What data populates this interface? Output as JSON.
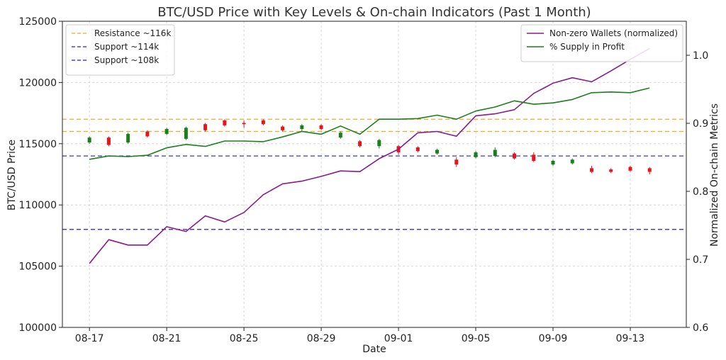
{
  "chart_data": {
    "type": "line",
    "title": "BTC/USD Price with Key Levels & On-chain Indicators (Past 1 Month)",
    "xlabel": "Date",
    "ylabel": "BTC/USD Price",
    "y2label": "Normalized On-chain Metrics",
    "x_ticks": [
      "08-17",
      "08-21",
      "08-25",
      "08-29",
      "09-01",
      "09-05",
      "09-09",
      "09-13"
    ],
    "x_tick_days": [
      0,
      4,
      8,
      12,
      16,
      20,
      24,
      28
    ],
    "xlim": [
      -1.4,
      30.9
    ],
    "ylim": [
      100000,
      125000
    ],
    "y_ticks": [
      100000,
      105000,
      110000,
      115000,
      120000,
      125000
    ],
    "y2lim": [
      0.6,
      1.05
    ],
    "y2_ticks": [
      0.6,
      0.7,
      0.8,
      0.9,
      1.0
    ],
    "y2_tick_labels": [
      "0.6",
      "0.7",
      "0.8",
      "0.9",
      "1.0"
    ],
    "grid": true,
    "horizontal_levels": [
      {
        "name": "Resistance ~116k",
        "value": 116000,
        "color": "#f5a623",
        "style": "dashed",
        "legend": true
      },
      {
        "name": "",
        "value": 117000,
        "color": "#f5a623",
        "style": "dashed",
        "legend": false
      },
      {
        "name": "Support ~114k",
        "value": 114000,
        "color": "#1f1fd6",
        "style": "dashed",
        "legend": true
      },
      {
        "name": "Support ~108k",
        "value": 108000,
        "color": "#1f1fd6",
        "style": "dashed",
        "legend": true
      }
    ],
    "candles": [
      {
        "d": 0,
        "open": 115100,
        "close": 115500,
        "high": 115600,
        "low": 115000
      },
      {
        "d": 1,
        "open": 115500,
        "close": 114900,
        "high": 115600,
        "low": 114800
      },
      {
        "d": 2,
        "open": 115100,
        "close": 115800,
        "high": 115900,
        "low": 115000
      },
      {
        "d": 3,
        "open": 116000,
        "close": 115600,
        "high": 116100,
        "low": 115500
      },
      {
        "d": 4,
        "open": 115800,
        "close": 116200,
        "high": 116300,
        "low": 115700
      },
      {
        "d": 5,
        "open": 115400,
        "close": 116300,
        "high": 116400,
        "low": 115300
      },
      {
        "d": 6,
        "open": 116600,
        "close": 116100,
        "high": 116700,
        "low": 116000
      },
      {
        "d": 7,
        "open": 116900,
        "close": 116500,
        "high": 117000,
        "low": 116400
      },
      {
        "d": 8,
        "open": 116700,
        "close": 116600,
        "high": 116900,
        "low": 116300
      },
      {
        "d": 9,
        "open": 116900,
        "close": 116600,
        "high": 117000,
        "low": 116500
      },
      {
        "d": 10,
        "open": 116400,
        "close": 116100,
        "high": 116500,
        "low": 116000
      },
      {
        "d": 11,
        "open": 116200,
        "close": 116500,
        "high": 116600,
        "low": 116000
      },
      {
        "d": 12,
        "open": 116500,
        "close": 116200,
        "high": 116600,
        "low": 116100
      },
      {
        "d": 13,
        "open": 115500,
        "close": 115900,
        "high": 116000,
        "low": 115400
      },
      {
        "d": 14,
        "open": 115200,
        "close": 114800,
        "high": 115300,
        "low": 114700
      },
      {
        "d": 15,
        "open": 114800,
        "close": 115300,
        "high": 115400,
        "low": 114600
      },
      {
        "d": 16,
        "open": 114800,
        "close": 114300,
        "high": 114900,
        "low": 114100
      },
      {
        "d": 17,
        "open": 114700,
        "close": 114400,
        "high": 114800,
        "low": 114300
      },
      {
        "d": 18,
        "open": 114200,
        "close": 114500,
        "high": 114600,
        "low": 114100
      },
      {
        "d": 19,
        "open": 113700,
        "close": 113300,
        "high": 113900,
        "low": 113100
      },
      {
        "d": 20,
        "open": 113900,
        "close": 114300,
        "high": 114400,
        "low": 113800
      },
      {
        "d": 21,
        "open": 114000,
        "close": 114500,
        "high": 114700,
        "low": 113900
      },
      {
        "d": 22,
        "open": 114200,
        "close": 113800,
        "high": 114300,
        "low": 113700
      },
      {
        "d": 23,
        "open": 114100,
        "close": 113600,
        "high": 114300,
        "low": 113500
      },
      {
        "d": 24,
        "open": 113300,
        "close": 113600,
        "high": 113700,
        "low": 113200
      },
      {
        "d": 25,
        "open": 113400,
        "close": 113700,
        "high": 113800,
        "low": 113300
      },
      {
        "d": 26,
        "open": 113000,
        "close": 112700,
        "high": 113200,
        "low": 112600
      },
      {
        "d": 27,
        "open": 112900,
        "close": 112700,
        "high": 113000,
        "low": 112600
      },
      {
        "d": 28,
        "open": 113100,
        "close": 112800,
        "high": 113200,
        "low": 112700
      },
      {
        "d": 29,
        "open": 113000,
        "close": 112700,
        "high": 113100,
        "low": 112500
      }
    ],
    "candle_colors": {
      "up": "#1a7f1a",
      "down": "#e8141b",
      "flat": "#333333"
    },
    "series": [
      {
        "name": "Non-zero Wallets (normalized)",
        "axis": "right",
        "color": "#8b1a8b",
        "values": [
          0.694,
          0.729,
          0.721,
          0.721,
          0.748,
          0.741,
          0.764,
          0.755,
          0.769,
          0.795,
          0.811,
          0.815,
          0.822,
          0.83,
          0.829,
          0.848,
          0.862,
          0.886,
          0.888,
          0.881,
          0.911,
          0.914,
          0.92,
          0.944,
          0.959,
          0.967,
          0.961,
          0.977,
          0.994,
          1.01
        ]
      },
      {
        "name": "% Supply in Profit",
        "axis": "right",
        "color": "#1a801a",
        "values": [
          0.847,
          0.852,
          0.851,
          0.853,
          0.864,
          0.869,
          0.866,
          0.874,
          0.874,
          0.873,
          0.88,
          0.888,
          0.884,
          0.896,
          0.884,
          0.906,
          0.906,
          0.907,
          0.912,
          0.906,
          0.918,
          0.924,
          0.933,
          0.928,
          0.93,
          0.935,
          0.945,
          0.946,
          0.945,
          0.952
        ]
      }
    ],
    "legend_left_position": "top-left",
    "legend_right_position": "top-right"
  }
}
